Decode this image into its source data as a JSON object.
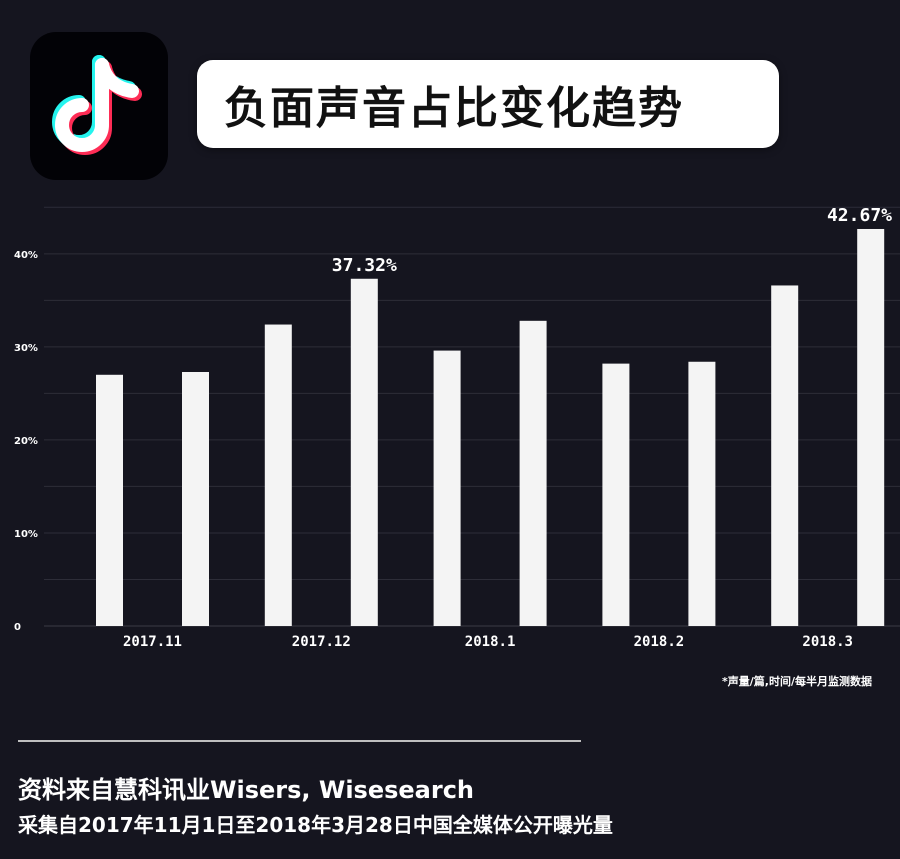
{
  "header": {
    "title": "负面声音占比变化趋势",
    "logo_icon": "tiktok-note-icon"
  },
  "chart_data": {
    "type": "bar",
    "title": "负面声音占比变化趋势",
    "categories": [
      "2017.11",
      "2017.12",
      "2018.1",
      "2018.2",
      "2018.3"
    ],
    "series": [
      {
        "values": [
          27.0,
          32.4,
          29.6,
          28.2,
          36.6
        ]
      },
      {
        "values": [
          27.3,
          37.32,
          32.8,
          28.4,
          42.67
        ]
      }
    ],
    "data_labels": [
      {
        "category": "2017.12",
        "series": 1,
        "text": "37.32%"
      },
      {
        "category": "2018.3",
        "series": 1,
        "text": "42.67%"
      }
    ],
    "y_ticks": [
      "0",
      "10%",
      "20%",
      "30%",
      "40%"
    ],
    "ylim": [
      0,
      46
    ],
    "grid": true,
    "bar_color": "#f4f4f4",
    "grid_color": "#2d2d38"
  },
  "note": "*声量/篇,时间/每半月监测数据",
  "footer": {
    "source_line1": "资料来自慧科讯业Wisers, Wisesearch",
    "source_line2": "采集自2017年11月1日至2018年3月28日中国全媒体公开曝光量"
  }
}
